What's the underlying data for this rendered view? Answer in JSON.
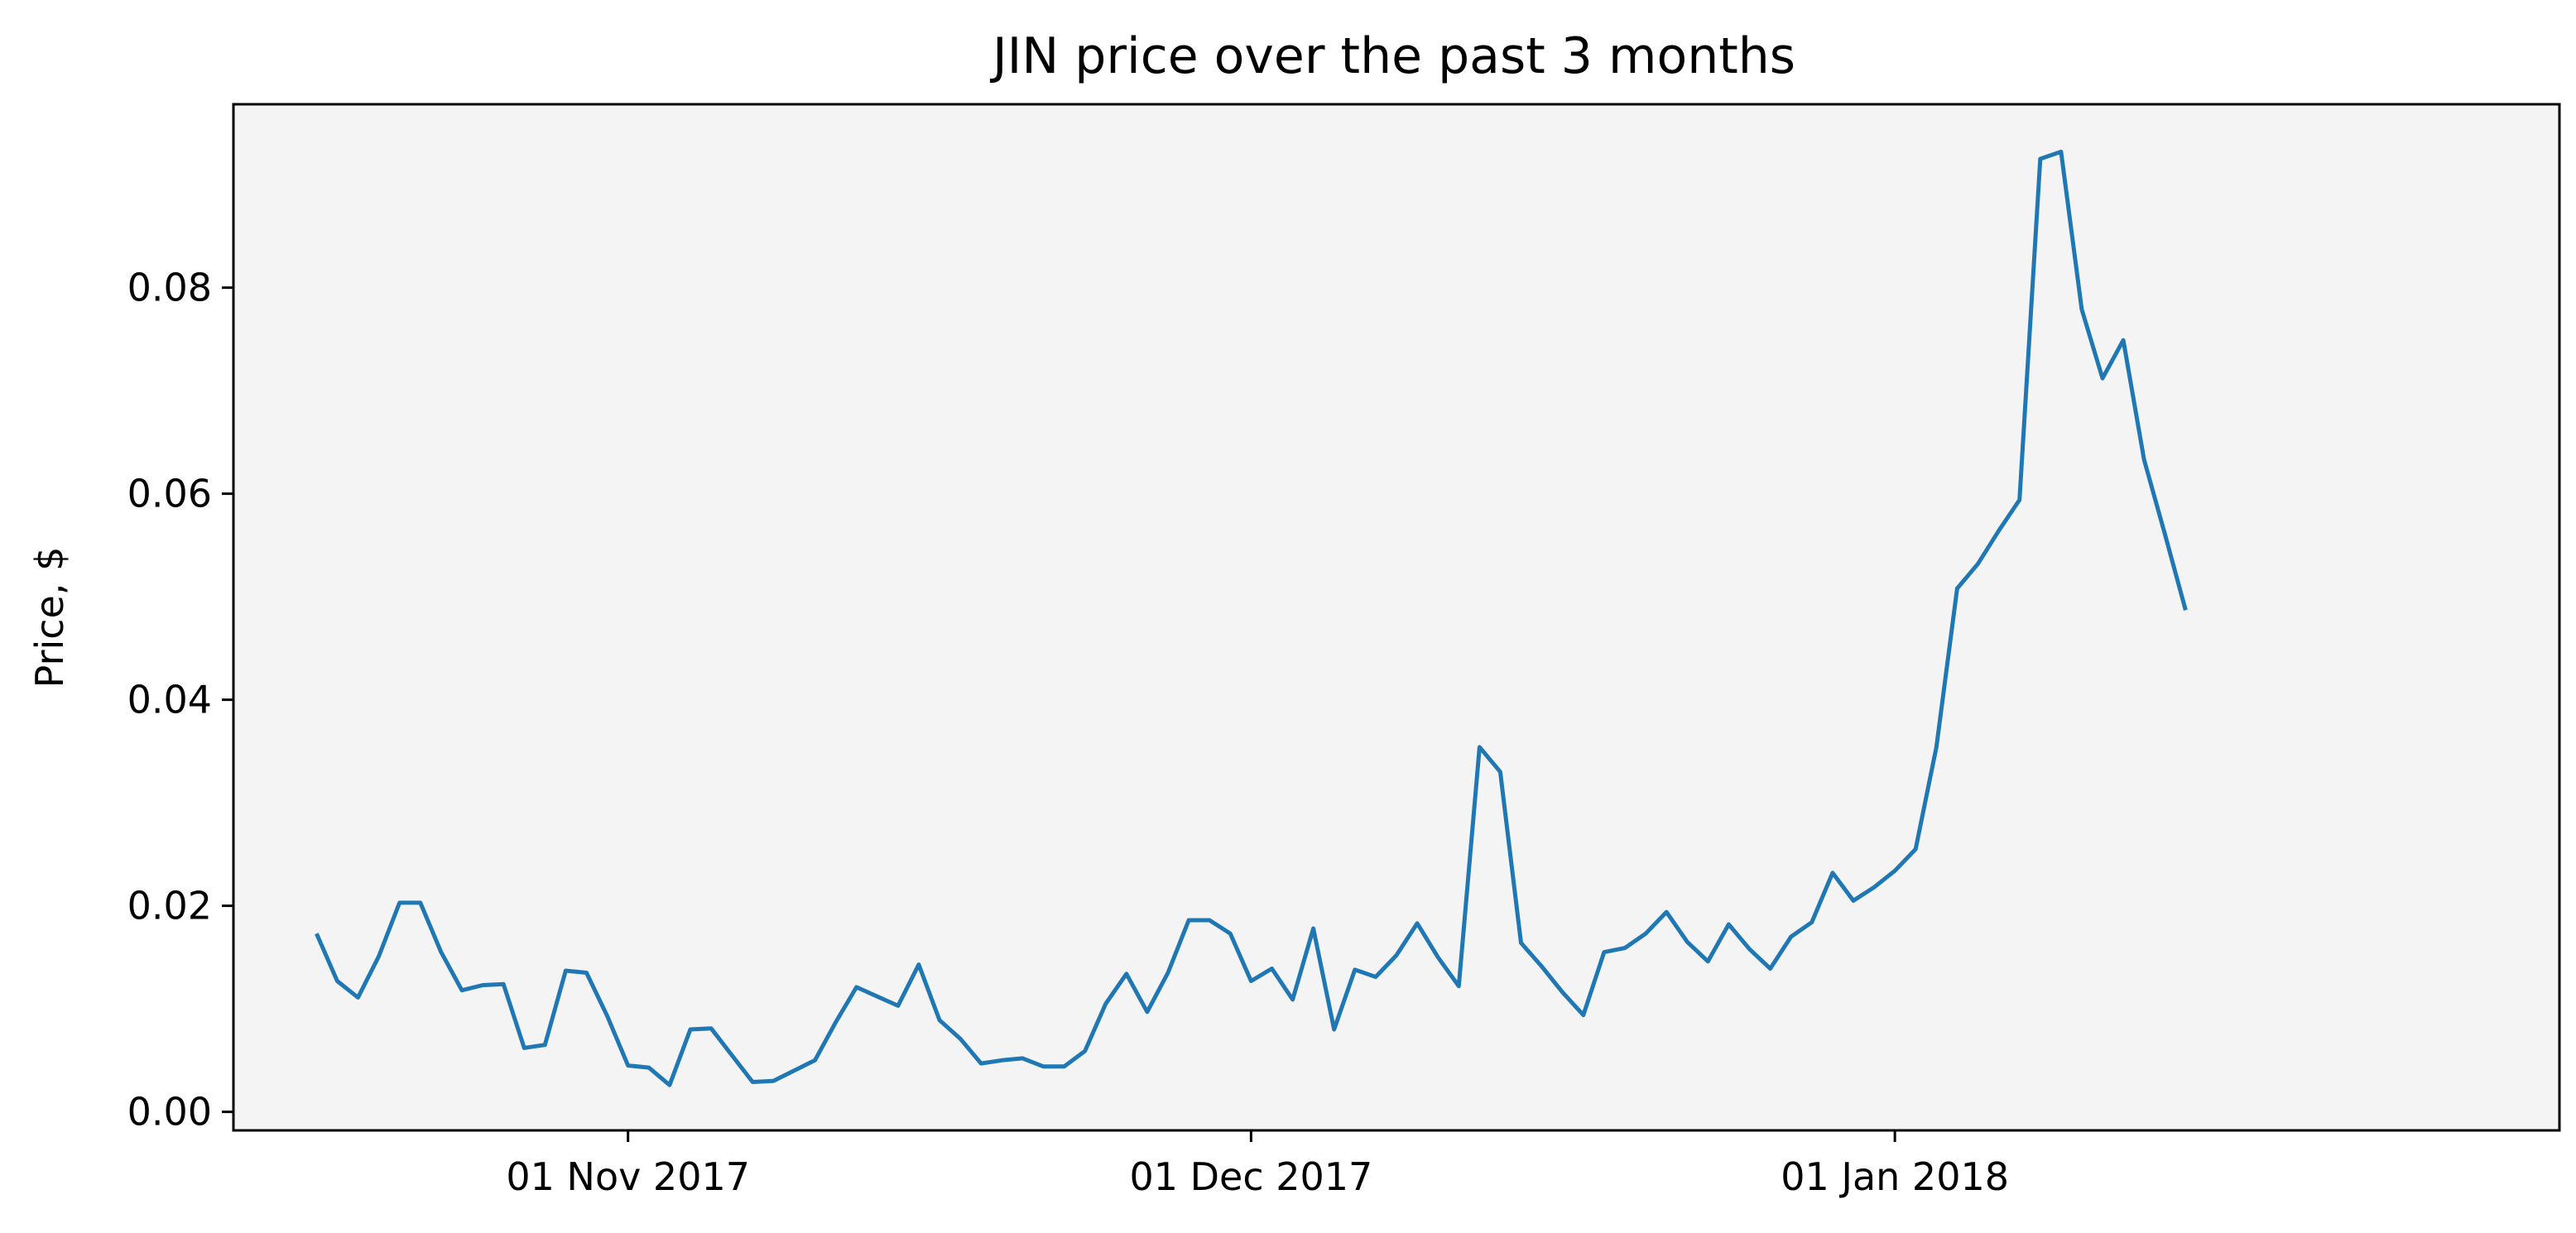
{
  "chart_data": {
    "type": "line",
    "title": "JIN price over the past 3 months",
    "xlabel": "",
    "ylabel": "Price, $",
    "grid": false,
    "legend": "none",
    "colors": {
      "line": "#1f77b4",
      "plot_background": "#f4f4f4",
      "axes": "#000000"
    },
    "xlim": [
      "2017-10-13",
      "2018-02-02"
    ],
    "ylim": [
      -0.0018,
      0.0978
    ],
    "x_ticks": [
      {
        "date": "2017-11-01",
        "label": "01 Nov 2017"
      },
      {
        "date": "2017-12-01",
        "label": "01 Dec 2017"
      },
      {
        "date": "2018-01-01",
        "label": "01 Jan 2018"
      }
    ],
    "y_ticks": [
      {
        "value": 0.0,
        "label": "0.00"
      },
      {
        "value": 0.02,
        "label": "0.02"
      },
      {
        "value": 0.04,
        "label": "0.04"
      },
      {
        "value": 0.06,
        "label": "0.06"
      },
      {
        "value": 0.08,
        "label": "0.08"
      }
    ],
    "series": [
      {
        "points": [
          [
            "2017-10-17",
            0.0173
          ],
          [
            "2017-10-18",
            0.0127
          ],
          [
            "2017-10-19",
            0.0111
          ],
          [
            "2017-10-20",
            0.0151
          ],
          [
            "2017-10-21",
            0.0203
          ],
          [
            "2017-10-22",
            0.0203
          ],
          [
            "2017-10-23",
            0.0155
          ],
          [
            "2017-10-24",
            0.0118
          ],
          [
            "2017-10-25",
            0.0123
          ],
          [
            "2017-10-26",
            0.0124
          ],
          [
            "2017-10-27",
            0.0062
          ],
          [
            "2017-10-28",
            0.0065
          ],
          [
            "2017-10-29",
            0.0137
          ],
          [
            "2017-10-30",
            0.0135
          ],
          [
            "2017-10-31",
            0.0093
          ],
          [
            "2017-11-01",
            0.0045
          ],
          [
            "2017-11-02",
            0.0043
          ],
          [
            "2017-11-03",
            0.0026
          ],
          [
            "2017-11-04",
            0.008
          ],
          [
            "2017-11-05",
            0.0081
          ],
          [
            "2017-11-06",
            0.0055
          ],
          [
            "2017-11-07",
            0.0029
          ],
          [
            "2017-11-08",
            0.003
          ],
          [
            "2017-11-09",
            0.004
          ],
          [
            "2017-11-10",
            0.005
          ],
          [
            "2017-11-11",
            0.0087
          ],
          [
            "2017-11-12",
            0.0121
          ],
          [
            "2017-11-13",
            0.0112
          ],
          [
            "2017-11-14",
            0.0103
          ],
          [
            "2017-11-15",
            0.0143
          ],
          [
            "2017-11-16",
            0.0089
          ],
          [
            "2017-11-17",
            0.0071
          ],
          [
            "2017-11-18",
            0.0047
          ],
          [
            "2017-11-19",
            0.005
          ],
          [
            "2017-11-20",
            0.0052
          ],
          [
            "2017-11-21",
            0.0044
          ],
          [
            "2017-11-22",
            0.0044
          ],
          [
            "2017-11-23",
            0.0059
          ],
          [
            "2017-11-24",
            0.0105
          ],
          [
            "2017-11-25",
            0.0134
          ],
          [
            "2017-11-26",
            0.0097
          ],
          [
            "2017-11-27",
            0.0135
          ],
          [
            "2017-11-28",
            0.0186
          ],
          [
            "2017-11-29",
            0.0186
          ],
          [
            "2017-11-30",
            0.0173
          ],
          [
            "2017-12-01",
            0.0127
          ],
          [
            "2017-12-02",
            0.0139
          ],
          [
            "2017-12-03",
            0.0109
          ],
          [
            "2017-12-04",
            0.0178
          ],
          [
            "2017-12-05",
            0.008
          ],
          [
            "2017-12-06",
            0.0138
          ],
          [
            "2017-12-07",
            0.0131
          ],
          [
            "2017-12-08",
            0.0152
          ],
          [
            "2017-12-09",
            0.0183
          ],
          [
            "2017-12-10",
            0.015
          ],
          [
            "2017-12-11",
            0.0122
          ],
          [
            "2017-12-12",
            0.0354
          ],
          [
            "2017-12-13",
            0.033
          ],
          [
            "2017-12-14",
            0.0164
          ],
          [
            "2017-12-15",
            0.0141
          ],
          [
            "2017-12-16",
            0.0116
          ],
          [
            "2017-12-17",
            0.0094
          ],
          [
            "2017-12-18",
            0.0155
          ],
          [
            "2017-12-19",
            0.0159
          ],
          [
            "2017-12-20",
            0.0173
          ],
          [
            "2017-12-21",
            0.0194
          ],
          [
            "2017-12-22",
            0.0165
          ],
          [
            "2017-12-23",
            0.0146
          ],
          [
            "2017-12-24",
            0.0182
          ],
          [
            "2017-12-25",
            0.0158
          ],
          [
            "2017-12-26",
            0.0139
          ],
          [
            "2017-12-27",
            0.017
          ],
          [
            "2017-12-28",
            0.0184
          ],
          [
            "2017-12-29",
            0.0232
          ],
          [
            "2017-12-30",
            0.0205
          ],
          [
            "2017-12-31",
            0.0218
          ],
          [
            "2018-01-01",
            0.0234
          ],
          [
            "2018-01-02",
            0.0255
          ],
          [
            "2018-01-03",
            0.0354
          ],
          [
            "2018-01-04",
            0.0508
          ],
          [
            "2018-01-05",
            0.0532
          ],
          [
            "2018-01-06",
            0.0564
          ],
          [
            "2018-01-07",
            0.0594
          ],
          [
            "2018-01-08",
            0.0925
          ],
          [
            "2018-01-09",
            0.0932
          ],
          [
            "2018-01-10",
            0.0779
          ],
          [
            "2018-01-11",
            0.0712
          ],
          [
            "2018-01-12",
            0.0749
          ],
          [
            "2018-01-13",
            0.0633
          ],
          [
            "2018-01-14",
            0.0561
          ],
          [
            "2018-01-15",
            0.0487
          ]
        ]
      }
    ]
  }
}
